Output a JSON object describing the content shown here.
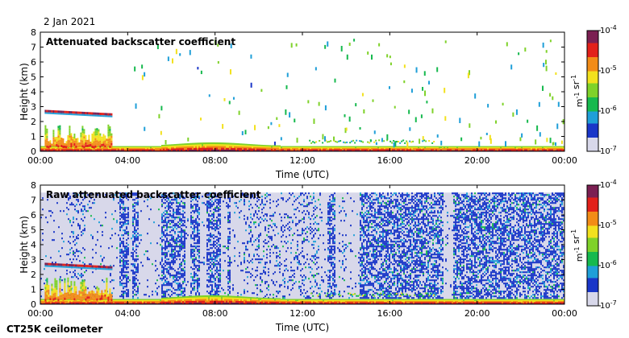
{
  "header": {
    "date": "2 Jan 2021"
  },
  "footer": {
    "instrument": "CT25K ceilometer"
  },
  "colormap": [
    "#d8d8ea",
    "#1a36c8",
    "#1f9fd8",
    "#16b94e",
    "#7fd22a",
    "#f2e11e",
    "#f28c17",
    "#e2201a",
    "#7b1f52"
  ],
  "chart_data": [
    {
      "type": "heatmap",
      "title": "Attenuated backscatter coefficient",
      "xlabel": "Time (UTC)",
      "ylabel": "Height (km)",
      "x_ticks": [
        "00:00",
        "04:00",
        "08:00",
        "12:00",
        "16:00",
        "20:00",
        "00:00"
      ],
      "y_ticks": [
        "0",
        "1",
        "2",
        "3",
        "4",
        "5",
        "6",
        "7",
        "8"
      ],
      "xlim_hours": [
        0,
        24
      ],
      "ylim": [
        0,
        8
      ],
      "colorbar": {
        "ticks": [
          "10-7",
          "10-6",
          "10-5",
          "10-4"
        ],
        "range": [
          1e-07,
          0.0001
        ],
        "log": true,
        "unit": "m-1 sr-1"
      },
      "background": "clear",
      "features": [
        {
          "name": "boundary layer",
          "t_start": 0,
          "t_end": 24,
          "top_km": 0.4
        },
        {
          "name": "low cloud/aerosol",
          "t_start": 0.2,
          "t_end": 3.3,
          "top_km": 2.8
        },
        {
          "name": "scattered high returns",
          "t_start": 4,
          "t_end": 24,
          "top_km": 7.6
        }
      ]
    },
    {
      "type": "heatmap",
      "title": "Raw attenuated backscatter coefficient",
      "xlabel": "Time (UTC)",
      "ylabel": "Height (km)",
      "x_ticks": [
        "00:00",
        "04:00",
        "08:00",
        "12:00",
        "16:00",
        "20:00",
        "00:00"
      ],
      "y_ticks": [
        "0",
        "1",
        "2",
        "3",
        "4",
        "5",
        "6",
        "7",
        "8"
      ],
      "xlim_hours": [
        0,
        24
      ],
      "ylim": [
        0,
        8
      ],
      "colorbar": {
        "ticks": [
          "10-7",
          "10-6",
          "10-5",
          "10-4"
        ],
        "range": [
          1e-07,
          0.0001
        ],
        "log": true,
        "unit": "m-1 sr-1"
      },
      "background": "noise up to 7.5 km",
      "features": [
        {
          "name": "boundary layer",
          "t_start": 0,
          "t_end": 24,
          "top_km": 0.4
        },
        {
          "name": "low cloud/aerosol",
          "t_start": 0.2,
          "t_end": 3.3,
          "top_km": 2.8
        }
      ]
    }
  ]
}
